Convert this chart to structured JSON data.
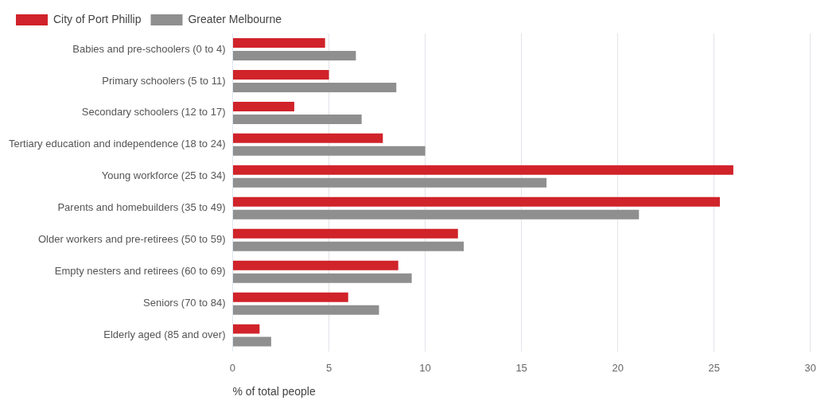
{
  "chart_data": {
    "type": "bar",
    "orientation": "horizontal",
    "xlabel": "% of total people",
    "categories": [
      "Babies and pre-schoolers (0 to 4)",
      "Primary schoolers (5 to 11)",
      "Secondary schoolers (12 to 17)",
      "Tertiary education and independence (18 to 24)",
      "Young workforce (25 to 34)",
      "Parents and homebuilders (35 to 49)",
      "Older workers and pre-retirees (50 to 59)",
      "Empty nesters and retirees (60 to 69)",
      "Seniors (70 to 84)",
      "Elderly aged (85 and over)"
    ],
    "series": [
      {
        "name": "City of Port Phillip",
        "color": "#d0232a",
        "values": [
          4.8,
          5.0,
          3.2,
          7.8,
          26.0,
          25.3,
          11.7,
          8.6,
          6.0,
          1.4
        ]
      },
      {
        "name": "Greater Melbourne",
        "color": "#8f8f8f",
        "values": [
          6.4,
          8.5,
          6.7,
          10.0,
          16.3,
          21.1,
          12.0,
          9.3,
          7.6,
          2.0
        ]
      }
    ],
    "xlim": [
      0,
      30
    ],
    "xticks": [
      0,
      5,
      10,
      15,
      20,
      25,
      30
    ],
    "grid": "x",
    "legend": "top left"
  }
}
